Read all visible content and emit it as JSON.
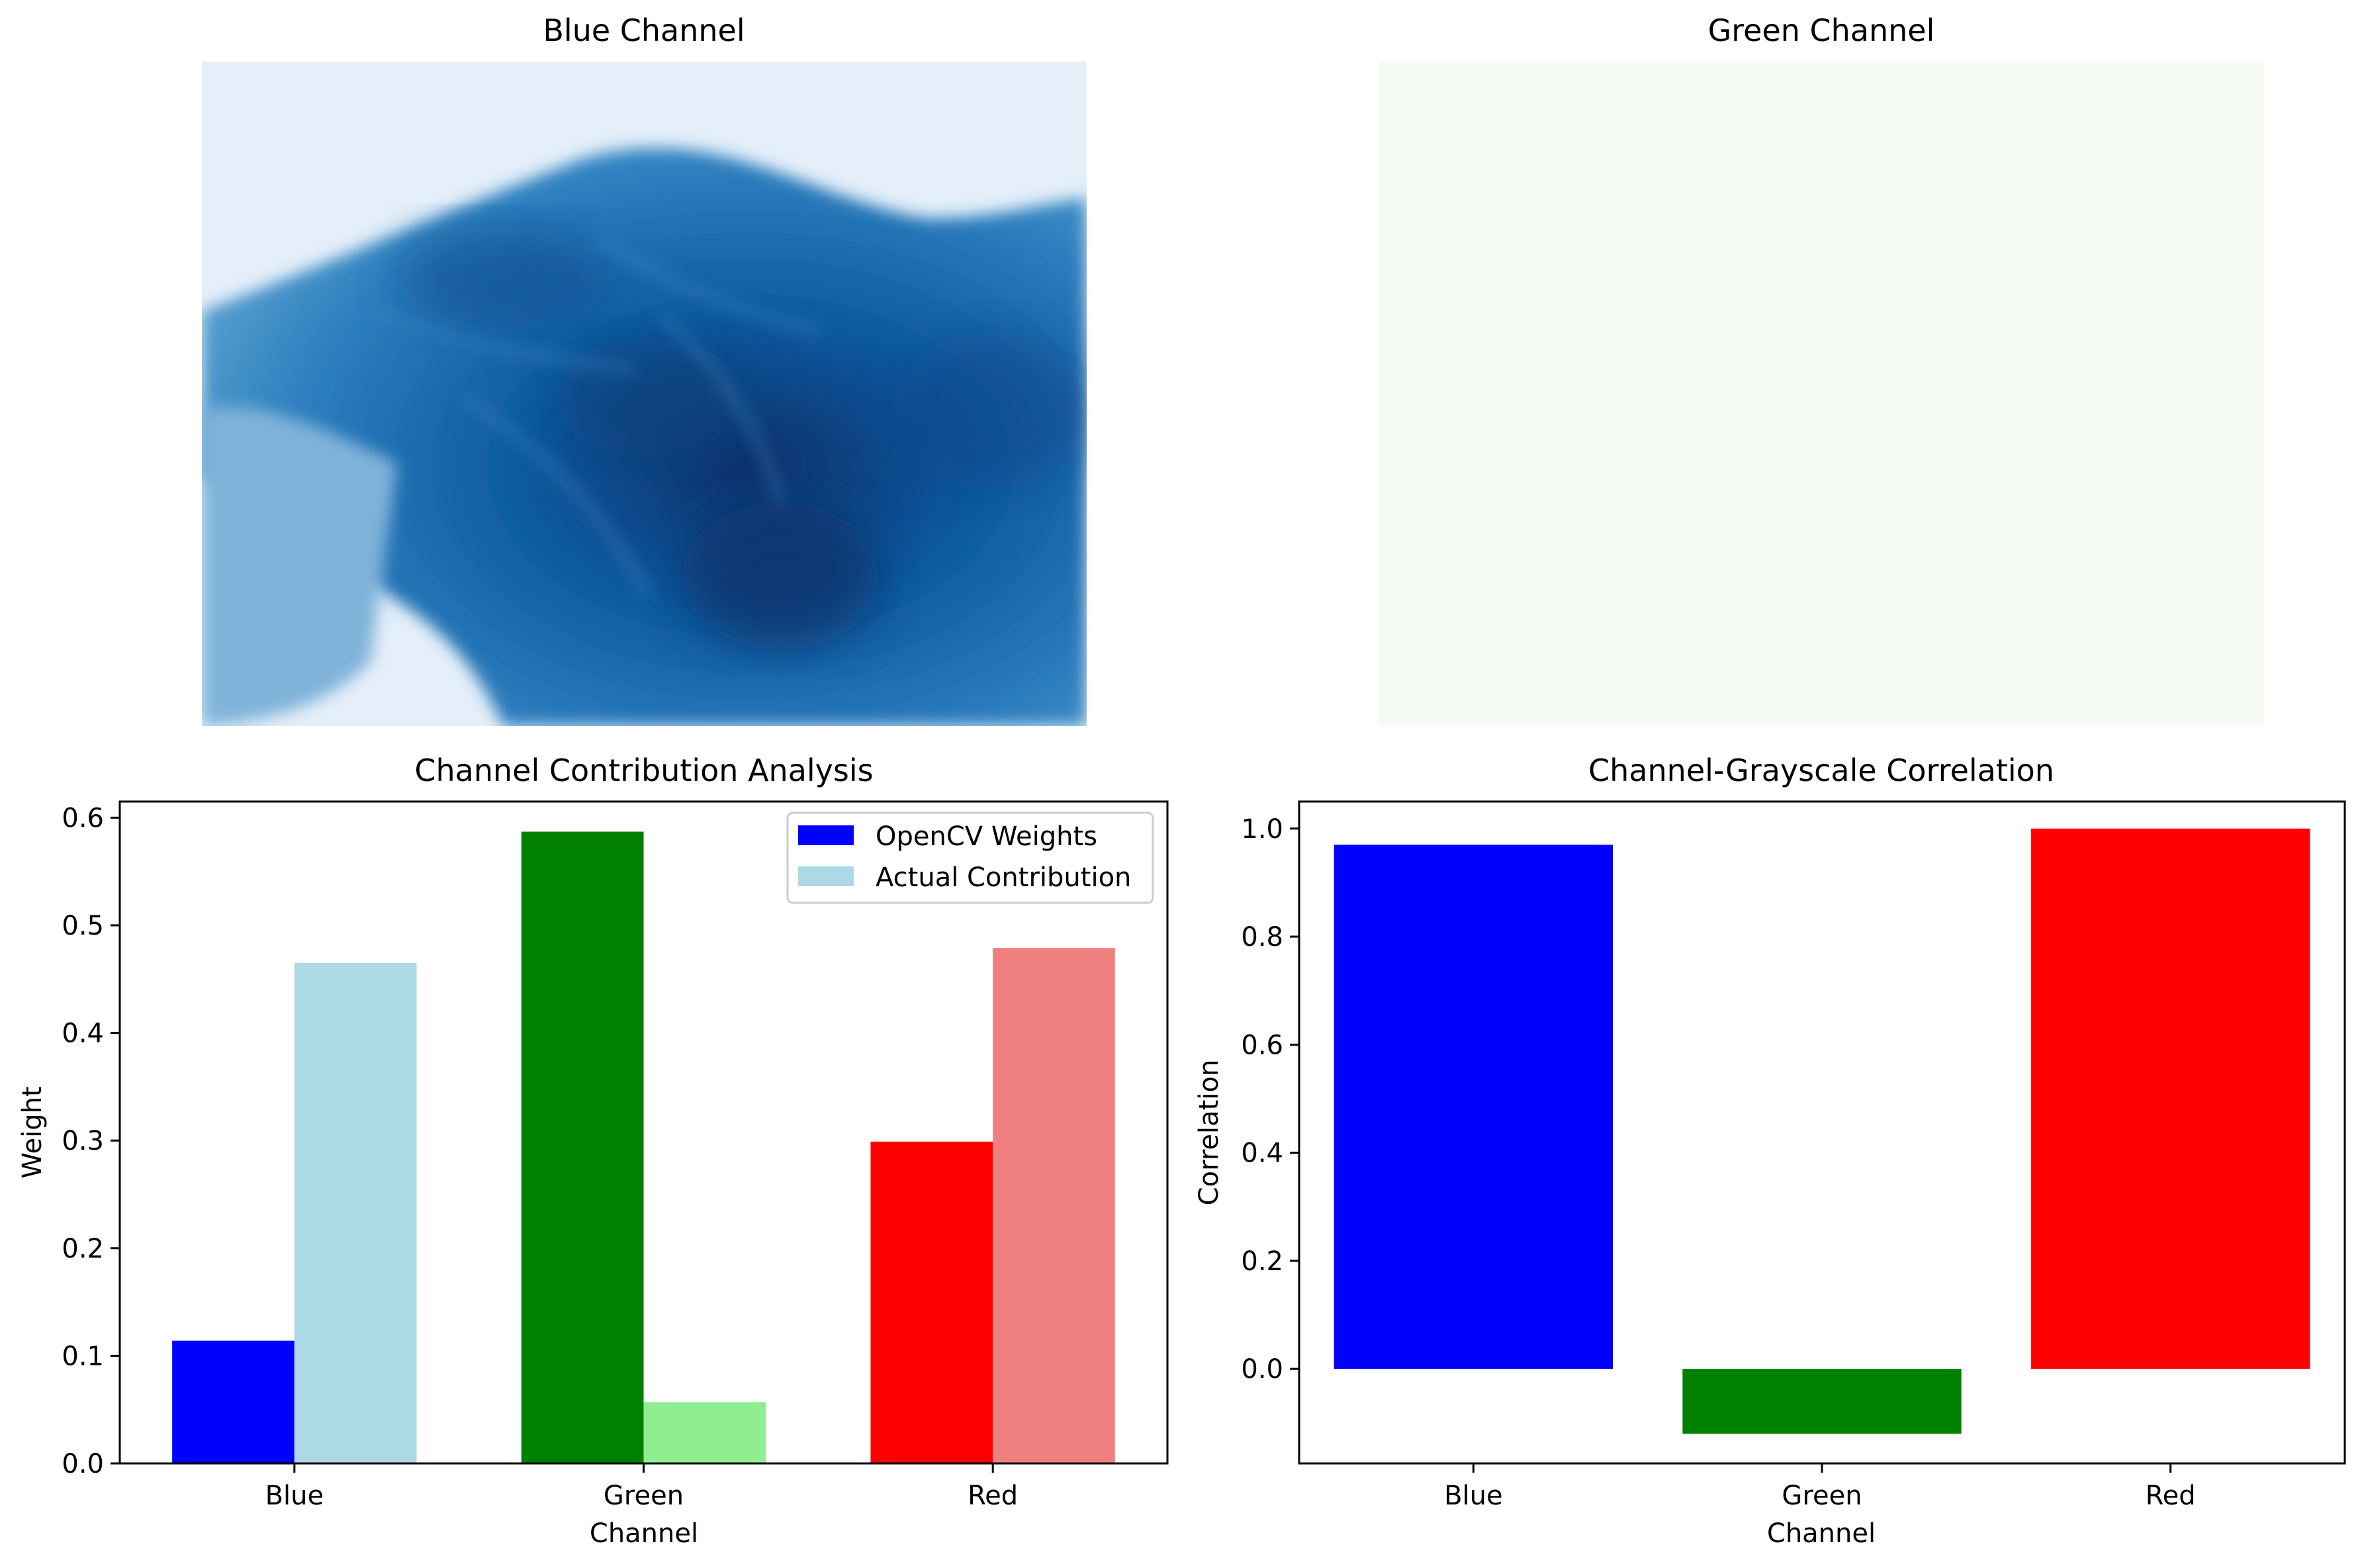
{
  "panels": {
    "blue_channel": {
      "title": "Blue Channel",
      "colormap": "Blues"
    },
    "green_channel": {
      "title": "Green Channel",
      "colormap": "Greens"
    }
  },
  "chart_data": [
    {
      "type": "bar",
      "title": "Channel Contribution Analysis",
      "xlabel": "Channel",
      "ylabel": "Weight",
      "categories": [
        "Blue",
        "Green",
        "Red"
      ],
      "series": [
        {
          "name": "OpenCV Weights",
          "values": [
            0.114,
            0.587,
            0.299
          ],
          "colors": [
            "#0000ff",
            "#008000",
            "#ff0000"
          ],
          "legend_color": "#0000ff"
        },
        {
          "name": "Actual Contribution",
          "values": [
            0.465,
            0.057,
            0.479
          ],
          "colors": [
            "#add8e6",
            "#90ee90",
            "#f08080"
          ],
          "legend_color": "#add8e6"
        }
      ],
      "ylim": [
        0,
        0.615
      ],
      "yticks": [
        "0.0",
        "0.1",
        "0.2",
        "0.3",
        "0.4",
        "0.5",
        "0.6"
      ],
      "grid": false,
      "legend_position": "top-right"
    },
    {
      "type": "bar",
      "title": "Channel-Grayscale Correlation",
      "xlabel": "Channel",
      "ylabel": "Correlation",
      "categories": [
        "Blue",
        "Green",
        "Red"
      ],
      "values": [
        0.97,
        -0.12,
        1.0
      ],
      "colors": [
        "#0000ff",
        "#008000",
        "#ff0000"
      ],
      "ylim": [
        -0.175,
        1.05
      ],
      "yticks": [
        "0.0",
        "0.2",
        "0.4",
        "0.6",
        "0.8",
        "1.0"
      ],
      "grid": false
    }
  ]
}
